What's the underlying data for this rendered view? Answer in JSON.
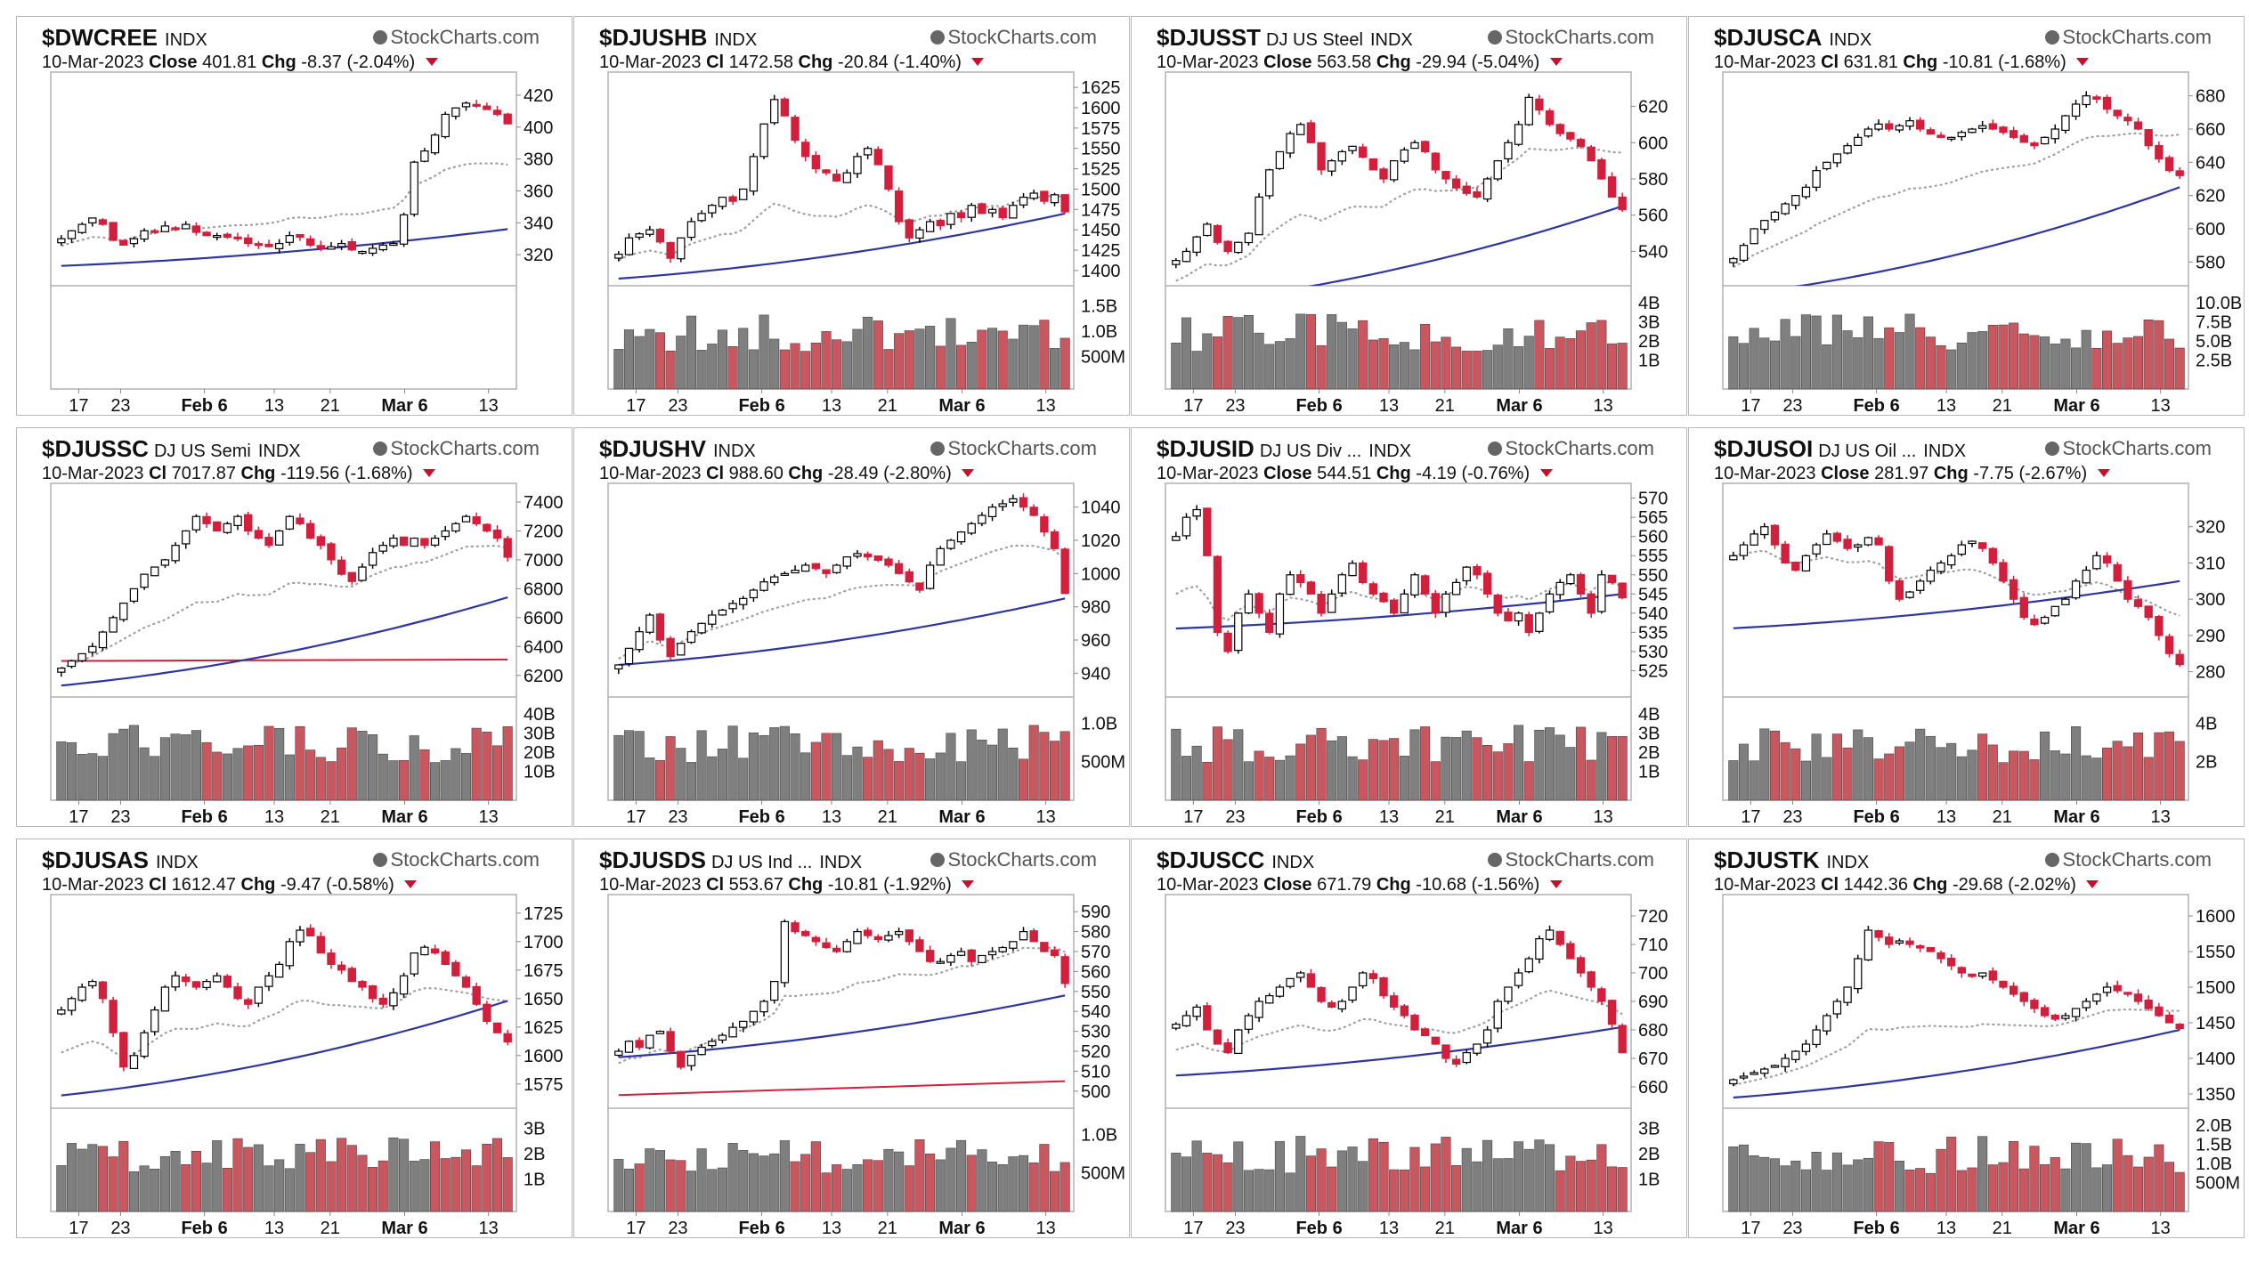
{
  "brand": "StockCharts.com",
  "date": "10-Mar-2023",
  "x_ticks": [
    "17",
    "23",
    "Feb 6",
    "13",
    "21",
    "Mar 6",
    "13"
  ],
  "colors": {
    "up": "#ffffff",
    "down": "#d21f3c",
    "border": "#000000",
    "vol_up": "#7f7f7f",
    "vol_down": "#c9575f",
    "ma_short": "#9a9a9a",
    "ma_long": "#2f35a0",
    "ma_red": "#d21f3c"
  },
  "chart_data": [
    {
      "symbol": "$DWCREE",
      "desc": "",
      "exch": "INDX",
      "close_label": "Close",
      "close": "401.81",
      "chg_label": "Chg",
      "chg": "-8.37 (-2.04%)",
      "type": "candlestick",
      "price_ticks": [
        320,
        340,
        360,
        380,
        400,
        420
      ],
      "ylim": [
        305,
        430
      ],
      "path": [
        330,
        335,
        339,
        343,
        339,
        329,
        326,
        330,
        335,
        334,
        338,
        336,
        339,
        334,
        332,
        332,
        331,
        330,
        327,
        326,
        325,
        327,
        332,
        331,
        326,
        324,
        325,
        327,
        323,
        322,
        324,
        326,
        327,
        345,
        378,
        385,
        395,
        408,
        412,
        415,
        414,
        411,
        408,
        402
      ],
      "ma_long": [
        313,
        336
      ],
      "ma_short": [
        324,
        368
      ],
      "vol_ticks": [],
      "vol_max": 1
    },
    {
      "symbol": "$DJUSHB",
      "desc": "",
      "exch": "INDX",
      "close_label": "Cl",
      "close": "1472.58",
      "chg_label": "Chg",
      "chg": "-20.84 (-1.40%)",
      "type": "candlestick",
      "price_ticks": [
        1400,
        1425,
        1450,
        1475,
        1500,
        1525,
        1550,
        1575,
        1600,
        1625
      ],
      "ylim": [
        1390,
        1635
      ],
      "path": [
        1420,
        1440,
        1445,
        1450,
        1435,
        1415,
        1440,
        1460,
        1470,
        1480,
        1490,
        1485,
        1500,
        1540,
        1580,
        1610,
        1590,
        1560,
        1540,
        1525,
        1520,
        1510,
        1520,
        1540,
        1550,
        1530,
        1500,
        1460,
        1440,
        1450,
        1460,
        1455,
        1470,
        1465,
        1480,
        1470,
        1475,
        1465,
        1480,
        1490,
        1495,
        1485,
        1493,
        1472
      ],
      "ma_long": [
        1390,
        1470
      ],
      "ma_short": [
        1410,
        1495
      ],
      "vol_ticks": [
        "500M",
        "1.0B",
        "1.5B"
      ],
      "vol_max": 1.6
    },
    {
      "symbol": "$DJUSST",
      "desc": "DJ US Steel",
      "exch": "INDX",
      "close_label": "Close",
      "close": "563.58",
      "chg_label": "Chg",
      "chg": "-29.94 (-5.04%)",
      "type": "candlestick",
      "price_ticks": [
        540,
        560,
        580,
        600,
        620
      ],
      "ylim": [
        525,
        635
      ],
      "path": [
        535,
        540,
        548,
        555,
        545,
        540,
        545,
        550,
        570,
        585,
        595,
        605,
        610,
        600,
        585,
        590,
        595,
        598,
        592,
        585,
        580,
        590,
        596,
        600,
        595,
        585,
        580,
        575,
        572,
        570,
        580,
        590,
        600,
        610,
        625,
        618,
        610,
        605,
        602,
        598,
        590,
        580,
        570,
        563
      ],
      "ma_long": [
        510,
        565
      ],
      "ma_short": [
        520,
        605
      ],
      "vol_ticks": [
        "1B",
        "2B",
        "3B",
        "4B"
      ],
      "vol_max": 4.2
    },
    {
      "symbol": "$DJUSCA",
      "desc": "",
      "exch": "INDX",
      "close_label": "Cl",
      "close": "631.81",
      "chg_label": "Chg",
      "chg": "-10.81 (-1.68%)",
      "type": "candlestick",
      "price_ticks": [
        580,
        600,
        620,
        640,
        660,
        680
      ],
      "ylim": [
        570,
        690
      ],
      "path": [
        582,
        590,
        600,
        605,
        610,
        615,
        620,
        625,
        635,
        640,
        645,
        650,
        655,
        660,
        663,
        660,
        662,
        665,
        660,
        657,
        655,
        655,
        658,
        660,
        662,
        660,
        658,
        655,
        652,
        650,
        655,
        660,
        668,
        675,
        680,
        678,
        672,
        668,
        665,
        660,
        650,
        642,
        635,
        632
      ],
      "ma_long": [
        560,
        625
      ],
      "ma_short": [
        575,
        665
      ],
      "vol_ticks": [
        "2.5B",
        "5.0B",
        "7.5B",
        "10.0B"
      ],
      "vol_max": 10.5
    },
    {
      "symbol": "$DJUSSC",
      "desc": "DJ US Semi",
      "exch": "INDX",
      "close_label": "Cl",
      "close": "7017.87",
      "chg_label": "Chg",
      "chg": "-119.56 (-1.68%)",
      "type": "candlestick",
      "price_ticks": [
        6200,
        6400,
        6600,
        6800,
        7000,
        7200,
        7400
      ],
      "ylim": [
        6100,
        7480
      ],
      "path": [
        6250,
        6300,
        6350,
        6400,
        6500,
        6600,
        6700,
        6800,
        6900,
        6950,
        7000,
        7100,
        7200,
        7300,
        7250,
        7200,
        7250,
        7300,
        7200,
        7150,
        7100,
        7200,
        7300,
        7250,
        7150,
        7100,
        7000,
        6900,
        6850,
        6950,
        7050,
        7100,
        7150,
        7100,
        7150,
        7100,
        7150,
        7200,
        7250,
        7300,
        7250,
        7200,
        7150,
        7018
      ],
      "ma_long": [
        6130,
        6740
      ],
      "ma_short": [
        6250,
        7100
      ],
      "ma_red": [
        6300,
        6310
      ],
      "vol_ticks": [
        "10B",
        "20B",
        "30B",
        "40B"
      ],
      "vol_max": 42
    },
    {
      "symbol": "$DJUSHV",
      "desc": "",
      "exch": "INDX",
      "close_label": "Cl",
      "close": "988.60",
      "chg_label": "Chg",
      "chg": "-28.49 (-2.80%)",
      "type": "candlestick",
      "price_ticks": [
        940,
        960,
        980,
        1000,
        1020,
        1040
      ],
      "ylim": [
        930,
        1050
      ],
      "path": [
        945,
        955,
        965,
        975,
        960,
        950,
        958,
        965,
        970,
        975,
        978,
        982,
        985,
        990,
        995,
        998,
        1000,
        1002,
        1005,
        1003,
        1000,
        1005,
        1010,
        1012,
        1010,
        1008,
        1005,
        1000,
        995,
        990,
        1005,
        1015,
        1020,
        1025,
        1030,
        1035,
        1040,
        1042,
        1045,
        1040,
        1035,
        1025,
        1015,
        988
      ],
      "ma_long": [
        945,
        985
      ],
      "ma_short": [
        950,
        1015
      ],
      "vol_ticks": [
        "500M",
        "1.0B"
      ],
      "vol_max": 1.3
    },
    {
      "symbol": "$DJUSID",
      "desc": "DJ US Div ...",
      "exch": "INDX",
      "close_label": "Close",
      "close": "544.51",
      "chg_label": "Chg",
      "chg": "-4.19 (-0.76%)",
      "type": "candlestick",
      "price_ticks": [
        525,
        530,
        535,
        540,
        545,
        550,
        555,
        560,
        565,
        570
      ],
      "ylim": [
        520,
        572
      ],
      "path": [
        560,
        565,
        567,
        555,
        535,
        530,
        540,
        545,
        540,
        535,
        545,
        550,
        548,
        545,
        540,
        545,
        550,
        553,
        548,
        545,
        543,
        540,
        545,
        550,
        545,
        540,
        545,
        548,
        552,
        550,
        545,
        540,
        538,
        540,
        535,
        540,
        545,
        548,
        550,
        545,
        540,
        550,
        548,
        544
      ],
      "ma_long": [
        536,
        545
      ],
      "ma_short": [
        540,
        548
      ],
      "vol_ticks": [
        "1B",
        "2B",
        "3B",
        "4B"
      ],
      "vol_max": 4.2
    },
    {
      "symbol": "$DJUSOI",
      "desc": "DJ US Oil ...",
      "exch": "INDX",
      "close_label": "Close",
      "close": "281.97",
      "chg_label": "Chg",
      "chg": "-7.75 (-2.67%)",
      "type": "candlestick",
      "price_ticks": [
        280,
        290,
        300,
        310,
        320
      ],
      "ylim": [
        275,
        330
      ],
      "path": [
        312,
        315,
        318,
        320,
        315,
        310,
        308,
        312,
        315,
        318,
        316,
        314,
        315,
        317,
        315,
        305,
        300,
        302,
        305,
        308,
        310,
        312,
        315,
        316,
        314,
        310,
        305,
        300,
        295,
        293,
        295,
        298,
        300,
        305,
        308,
        312,
        310,
        305,
        300,
        298,
        295,
        290,
        285,
        282
      ],
      "ma_long": [
        292,
        305
      ],
      "ma_short": [
        312,
        300
      ],
      "vol_ticks": [
        "2B",
        "4B"
      ],
      "vol_max": 5.5
    },
    {
      "symbol": "$DJUSAS",
      "desc": "",
      "exch": "INDX",
      "close_label": "Cl",
      "close": "1612.47",
      "chg_label": "Chg",
      "chg": "-9.47 (-0.58%)",
      "type": "candlestick",
      "price_ticks": [
        1575,
        1600,
        1625,
        1650,
        1675,
        1700,
        1725
      ],
      "ylim": [
        1560,
        1735
      ],
      "path": [
        1640,
        1650,
        1660,
        1665,
        1650,
        1620,
        1590,
        1600,
        1620,
        1640,
        1660,
        1670,
        1665,
        1660,
        1665,
        1670,
        1660,
        1650,
        1645,
        1660,
        1670,
        1680,
        1700,
        1710,
        1705,
        1690,
        1680,
        1675,
        1665,
        1660,
        1650,
        1645,
        1655,
        1670,
        1690,
        1695,
        1690,
        1680,
        1670,
        1660,
        1645,
        1630,
        1620,
        1612
      ],
      "ma_long": [
        1565,
        1648
      ],
      "ma_short": [
        1590,
        1660
      ],
      "vol_ticks": [
        "1B",
        "2B",
        "3B"
      ],
      "vol_max": 3.2
    },
    {
      "symbol": "$DJUSDS",
      "desc": "DJ US Ind ...",
      "exch": "INDX",
      "close_label": "Cl",
      "close": "553.67",
      "chg_label": "Chg",
      "chg": "-10.81 (-1.92%)",
      "type": "candlestick",
      "price_ticks": [
        500,
        510,
        520,
        530,
        540,
        550,
        560,
        570,
        580,
        590
      ],
      "ylim": [
        495,
        595
      ],
      "path": [
        520,
        525,
        522,
        528,
        530,
        520,
        512,
        518,
        522,
        525,
        528,
        532,
        535,
        540,
        545,
        555,
        585,
        580,
        578,
        575,
        572,
        570,
        575,
        580,
        578,
        576,
        578,
        580,
        575,
        570,
        565,
        565,
        568,
        570,
        565,
        568,
        570,
        572,
        575,
        580,
        575,
        570,
        568,
        554
      ],
      "ma_long": [
        517,
        548
      ],
      "ma_short": [
        512,
        575
      ],
      "ma_red": [
        498,
        505
      ],
      "vol_ticks": [
        "500M",
        "1.0B"
      ],
      "vol_max": 1.35
    },
    {
      "symbol": "$DJUSCC",
      "desc": "",
      "exch": "INDX",
      "close_label": "Close",
      "close": "671.79",
      "chg_label": "Chg",
      "chg": "-10.68 (-1.56%)",
      "type": "candlestick",
      "price_ticks": [
        660,
        670,
        680,
        690,
        700,
        710,
        720
      ],
      "ylim": [
        655,
        725
      ],
      "path": [
        682,
        685,
        688,
        680,
        675,
        672,
        680,
        685,
        690,
        692,
        695,
        698,
        700,
        695,
        690,
        688,
        690,
        695,
        700,
        698,
        692,
        688,
        685,
        680,
        678,
        675,
        670,
        668,
        672,
        675,
        680,
        690,
        695,
        700,
        705,
        712,
        715,
        710,
        705,
        700,
        695,
        690,
        682,
        672
      ],
      "ma_long": [
        664,
        681
      ],
      "ma_short": [
        670,
        690
      ],
      "vol_ticks": [
        "1B",
        "2B",
        "3B"
      ],
      "vol_max": 3.6
    },
    {
      "symbol": "$DJUSTK",
      "desc": "",
      "exch": "INDX",
      "close_label": "Cl",
      "close": "1442.36",
      "chg_label": "Chg",
      "chg": "-29.68 (-2.02%)",
      "type": "candlestick",
      "price_ticks": [
        1350,
        1400,
        1450,
        1500,
        1550,
        1600
      ],
      "ylim": [
        1340,
        1620
      ],
      "path": [
        1370,
        1375,
        1380,
        1385,
        1390,
        1400,
        1410,
        1420,
        1440,
        1460,
        1480,
        1500,
        1540,
        1580,
        1570,
        1560,
        1565,
        1560,
        1555,
        1550,
        1540,
        1530,
        1520,
        1515,
        1520,
        1510,
        1500,
        1490,
        1480,
        1470,
        1460,
        1455,
        1460,
        1470,
        1480,
        1490,
        1500,
        1495,
        1490,
        1480,
        1470,
        1460,
        1450,
        1442
      ],
      "ma_long": [
        1345,
        1440
      ],
      "ma_short": [
        1360,
        1475
      ],
      "vol_ticks": [
        "500M",
        "1.0B",
        "1.5B",
        "2.0B"
      ],
      "vol_max": 2.1
    }
  ]
}
